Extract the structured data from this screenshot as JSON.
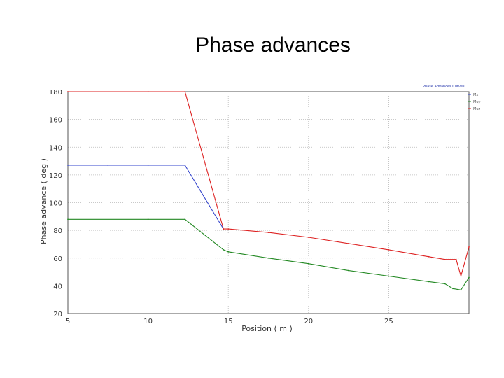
{
  "page": {
    "title": "Phase advances"
  },
  "chart_data": {
    "type": "line",
    "title": "Phase advances",
    "xlabel": "Position ( m )",
    "ylabel": "Phase advance ( deg )",
    "xlim": [
      5,
      30
    ],
    "ylim": [
      20,
      180
    ],
    "x_ticks": [
      5,
      10,
      15,
      20,
      25
    ],
    "y_ticks": [
      20,
      40,
      60,
      80,
      100,
      120,
      140,
      160,
      180
    ],
    "grid": true,
    "legend_placement": "top-right",
    "legend_header": "Phase Advances Curves",
    "series": [
      {
        "name": "Mx",
        "color": "#3344cc",
        "x": [
          5,
          7.5,
          10,
          12.3,
          14.7
        ],
        "y": [
          127,
          127,
          127,
          127,
          81
        ]
      },
      {
        "name": "Muy",
        "color": "#228822",
        "x": [
          5,
          10,
          12.3,
          14.7,
          15,
          17.5,
          20,
          22.5,
          25,
          27.5,
          28.5,
          29,
          29.5,
          30
        ],
        "y": [
          88,
          88,
          88,
          66,
          64.5,
          60,
          56,
          51,
          47,
          43,
          41.5,
          38,
          37,
          46
        ]
      },
      {
        "name": "Muz",
        "color": "#dd2222",
        "x": [
          5,
          10,
          12.3,
          14.7,
          15,
          17.5,
          20,
          22.5,
          25,
          27.5,
          28.5,
          29.2,
          29.5,
          30
        ],
        "y": [
          180,
          180,
          180,
          81,
          81,
          78.5,
          75,
          70.5,
          66,
          61,
          59,
          59,
          47,
          68
        ]
      }
    ]
  }
}
